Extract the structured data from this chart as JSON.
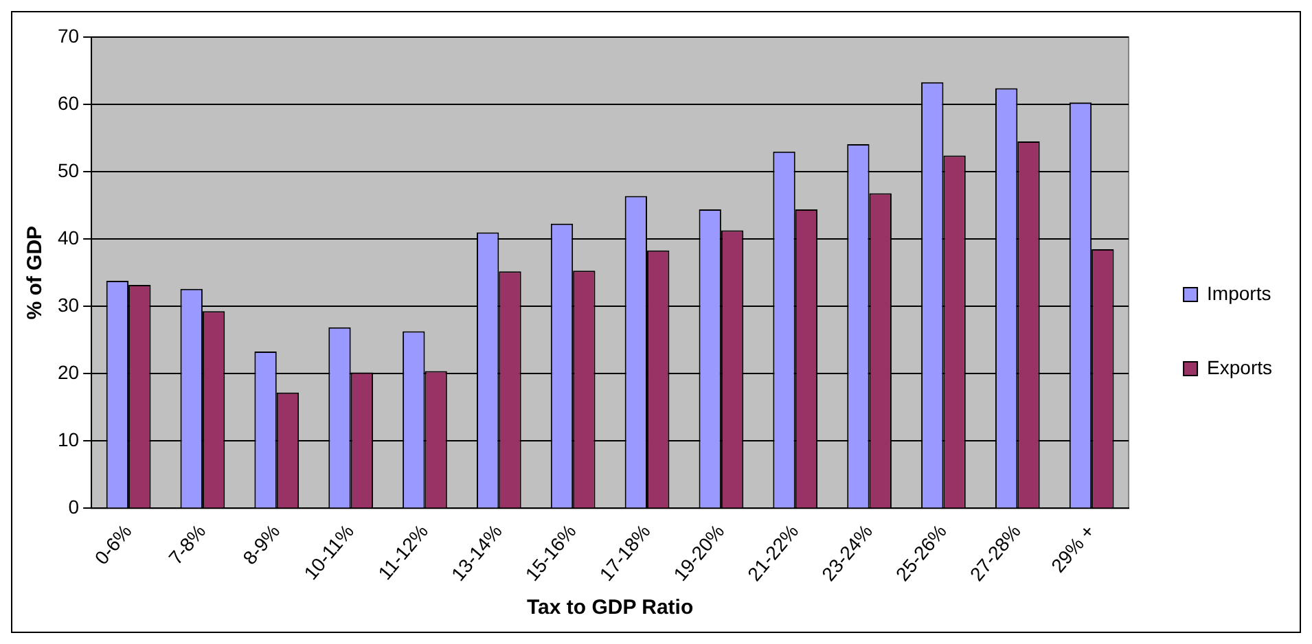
{
  "chart_data": {
    "type": "bar",
    "xlabel": "Tax to GDP Ratio",
    "ylabel": "% of GDP",
    "categories": [
      "0-6%",
      "7-8%",
      "8-9%",
      "10-11%",
      "11-12%",
      "13-14%",
      "15-16%",
      "17-18%",
      "19-20%",
      "21-22%",
      "23-24%",
      "25-26%",
      "27-28%",
      "29% +"
    ],
    "series": [
      {
        "name": "Imports",
        "color": "#9999ff",
        "values": [
          33.8,
          32.6,
          23.3,
          26.9,
          26.3,
          41,
          42.3,
          46.4,
          44.4,
          53,
          54.1,
          63.3,
          62.4,
          60.3
        ]
      },
      {
        "name": "Exports",
        "color": "#993366",
        "values": [
          33.2,
          29.3,
          17.2,
          20.2,
          20.4,
          35.2,
          35.3,
          38.3,
          41.3,
          44.4,
          46.8,
          52.4,
          54.5,
          38.5
        ]
      }
    ],
    "ylim": [
      0,
      70
    ],
    "yticks": [
      0,
      10,
      20,
      30,
      40,
      50,
      60,
      70
    ],
    "grid": "y",
    "legend": "right"
  }
}
